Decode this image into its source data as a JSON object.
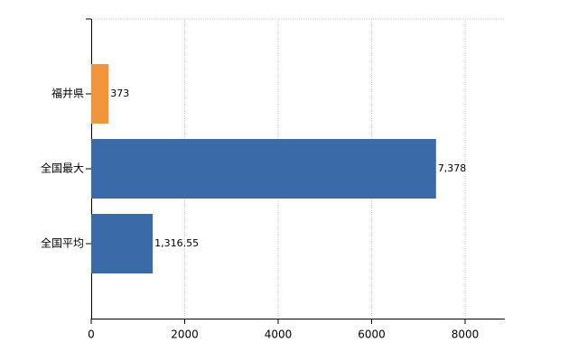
{
  "chart_data": {
    "type": "barh",
    "categories": [
      "福井県",
      "全国最大",
      "全国平均"
    ],
    "values": [
      373,
      7378,
      1316.55
    ],
    "value_labels": [
      "373",
      "7,378",
      "1,316.55"
    ],
    "colors": [
      "#f0953a",
      "#3b6aa8",
      "#3b6aa8"
    ],
    "xlim": [
      0,
      8850
    ],
    "xticks": [
      0,
      2000,
      4000,
      6000,
      8000
    ],
    "grid": true
  }
}
